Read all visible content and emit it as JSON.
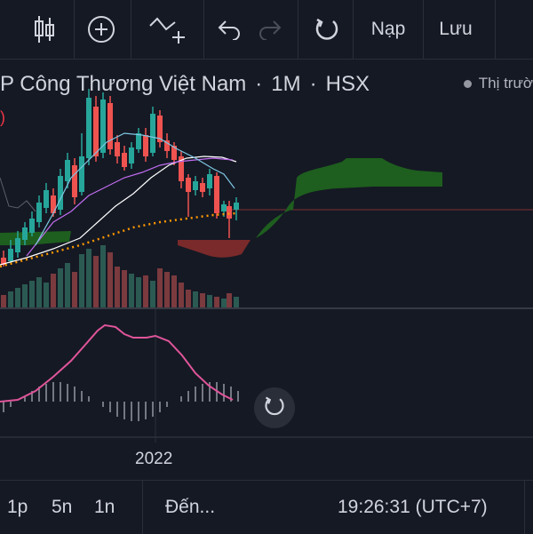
{
  "toolbar": {
    "indicator_icon": "candlestick-icon",
    "add_icon": "plus-circle-icon",
    "compare_icon": "line-plus-icon",
    "undo_icon": "undo-icon",
    "redo_icon": "redo-icon",
    "reset_icon": "reset-icon",
    "load_label": "Nạp",
    "save_label": "Lưu"
  },
  "symbol": {
    "name": "P Công Thương Việt Nam",
    "interval": "1M",
    "exchange": "HSX"
  },
  "legend": {
    "market_status": "Thị trườ",
    "paren": ")"
  },
  "chart_data": {
    "type": "candlestick",
    "x_tick_labels": [
      "2022"
    ],
    "colors": {
      "up": "#26a69a",
      "down": "#ef5350",
      "cloud_bull": "#1e5e1e",
      "cloud_bear": "#7a2a2a",
      "ma_white": "#ffffff",
      "ma_purple": "#c06cf0",
      "ma_cyan": "#7ec8e3",
      "dotted": "#ff9800",
      "macd_line": "#e0559a",
      "histogram": "#9598a1"
    }
  },
  "bottom": {
    "tf_1": "1p",
    "tf_2": "5n",
    "tf_3": "1n",
    "goto": "Đến...",
    "time": "19:26:31 (UTC+7)"
  },
  "float_reset_icon": "reset-icon"
}
